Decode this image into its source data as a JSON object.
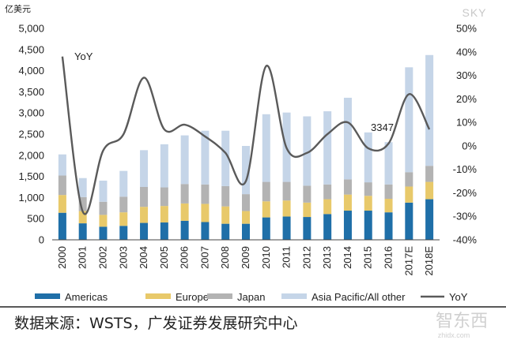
{
  "chart_data": {
    "type": "bar",
    "stacked": true,
    "ylabel": "亿美元",
    "left_axis": {
      "min": 0,
      "max": 5000,
      "step": 500,
      "ticks": [
        "0",
        "500",
        "1,000",
        "1,500",
        "2,000",
        "2,500",
        "3,000",
        "3,500",
        "4,000",
        "4,500",
        "5,000"
      ]
    },
    "right_axis": {
      "min": -40,
      "max": 50,
      "step": 10,
      "ticks": [
        "-40%",
        "-30%",
        "-20%",
        "-10%",
        "0%",
        "10%",
        "20%",
        "30%",
        "40%",
        "50%"
      ]
    },
    "categories": [
      "2000",
      "2001",
      "2002",
      "2003",
      "2004",
      "2005",
      "2006",
      "2007",
      "2008",
      "2009",
      "2010",
      "2011",
      "2012",
      "2013",
      "2014",
      "2015",
      "2016",
      "2017E",
      "2018E"
    ],
    "series": [
      {
        "name": "Americas",
        "color": "#1f6fa8",
        "values": [
          640,
          390,
          310,
          330,
          400,
          410,
          450,
          420,
          380,
          380,
          530,
          550,
          540,
          610,
          690,
          690,
          650,
          880,
          960
        ]
      },
      {
        "name": "Europe",
        "color": "#e8c96a",
        "values": [
          420,
          290,
          280,
          320,
          380,
          390,
          410,
          430,
          410,
          300,
          380,
          380,
          340,
          350,
          380,
          350,
          320,
          380,
          410
        ]
      },
      {
        "name": "Japan",
        "color": "#b3b3b3",
        "values": [
          460,
          330,
          310,
          370,
          470,
          440,
          460,
          460,
          480,
          400,
          460,
          440,
          400,
          350,
          360,
          320,
          340,
          340,
          380
        ]
      },
      {
        "name": "Asia Pacific/All other",
        "color": "#c5d5e8",
        "values": [
          500,
          450,
          500,
          610,
          870,
          1020,
          1150,
          1270,
          1310,
          1140,
          1600,
          1640,
          1640,
          1730,
          1930,
          1180,
          1000,
          2480,
          2620
        ]
      }
    ],
    "line": {
      "name": "YoY",
      "color": "#5a5a5a",
      "axis": "right",
      "values": [
        38,
        -28,
        -2,
        5,
        29,
        7,
        9,
        4,
        -3,
        -15,
        34,
        -1,
        -3,
        5,
        10,
        -1,
        1,
        22,
        7
      ]
    },
    "annotations": [
      {
        "text": "YoY"
      },
      {
        "text": "3347"
      }
    ],
    "legend": "bottom",
    "grid": false
  },
  "source": "数据来源：WSTS，广发证券发展研究中心",
  "watermark": "SKY",
  "brand_watermark": {
    "name": "智东西",
    "url": "zhidx.com"
  }
}
